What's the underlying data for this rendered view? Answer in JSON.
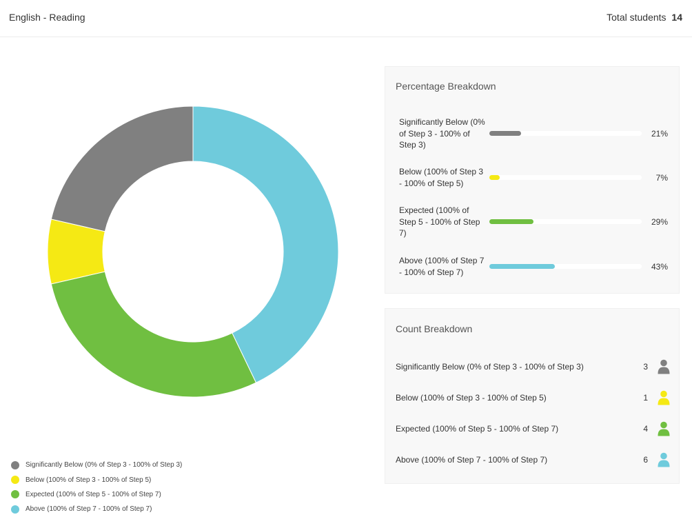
{
  "header": {
    "subject": "English - Reading",
    "total_label": "Total students",
    "total_count": "14"
  },
  "colors": {
    "significantly_below": "#808080",
    "below": "#f5e914",
    "expected": "#70bf41",
    "above": "#6fcbdc"
  },
  "chart_data": {
    "type": "pie",
    "variant": "donut",
    "categories": [
      "Significantly Below (0% of Step 3 - 100% of Step 3)",
      "Below (100% of Step 3 - 100% of Step 5)",
      "Expected (100% of Step 5 - 100% of Step 7)",
      "Above (100% of Step 7 - 100% of Step 7)"
    ],
    "values": [
      3,
      1,
      4,
      6
    ],
    "colors": [
      "#808080",
      "#f5e914",
      "#70bf41",
      "#6fcbdc"
    ],
    "legend_position": "bottom-left",
    "title": ""
  },
  "percentage_breakdown": {
    "title": "Percentage Breakdown",
    "rows": [
      {
        "label": "Significantly Below (0% of Step 3 - 100% of Step 3)",
        "percent": 21,
        "display": "21%",
        "color": "#808080"
      },
      {
        "label": "Below (100% of Step 3 - 100% of Step 5)",
        "percent": 7,
        "display": "7%",
        "color": "#f5e914"
      },
      {
        "label": "Expected (100% of Step 5 - 100% of Step 7)",
        "percent": 29,
        "display": "29%",
        "color": "#70bf41"
      },
      {
        "label": "Above (100% of Step 7 - 100% of Step 7)",
        "percent": 43,
        "display": "43%",
        "color": "#6fcbdc"
      }
    ]
  },
  "count_breakdown": {
    "title": "Count Breakdown",
    "rows": [
      {
        "label": "Significantly Below (0% of Step 3 - 100% of Step 3)",
        "count": "3",
        "icon": "person-icon",
        "color": "#808080"
      },
      {
        "label": "Below (100% of Step 3 - 100% of Step 5)",
        "count": "1",
        "icon": "person-icon",
        "color": "#f5e914"
      },
      {
        "label": "Expected (100% of Step 5 - 100% of Step 7)",
        "count": "4",
        "icon": "person-icon",
        "color": "#70bf41"
      },
      {
        "label": "Above (100% of Step 7 - 100% of Step 7)",
        "count": "6",
        "icon": "person-icon",
        "color": "#6fcbdc"
      }
    ]
  }
}
